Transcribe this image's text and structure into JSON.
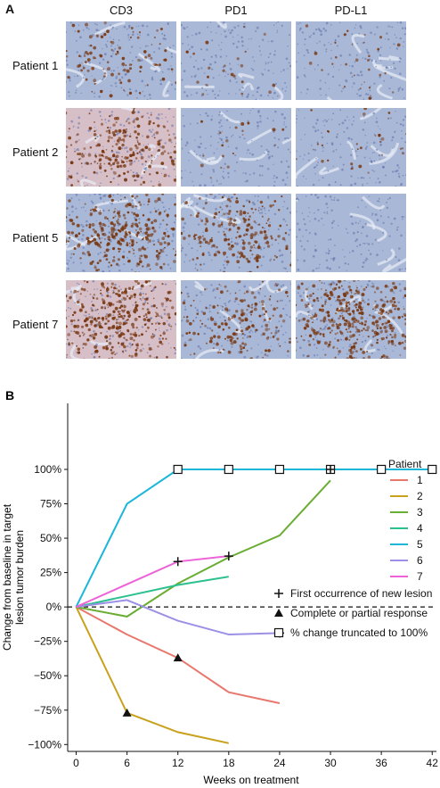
{
  "panel_a": {
    "label": "A",
    "columns": [
      "CD3",
      "PD1",
      "PD-L1"
    ],
    "rows": [
      "Patient 1",
      "Patient 2",
      "Patient 5",
      "Patient 7"
    ],
    "stain_density": [
      [
        0.25,
        0.05,
        0.08
      ],
      [
        0.55,
        0.05,
        0.08
      ],
      [
        0.8,
        0.5,
        0.0
      ],
      [
        0.85,
        0.45,
        0.9
      ]
    ],
    "colors": {
      "stain": "#7a3a14",
      "background_blue": "#a9b8d6",
      "background_pink": "#d7bfc8"
    }
  },
  "panel_b": {
    "label": "B",
    "chart_data": {
      "type": "line",
      "xlabel": "Weeks on treatment",
      "ylabel": "Change from baseline in target lesion tumor burden",
      "ylabel_lines": [
        "Change from baseline in target",
        "lesion tumor burden"
      ],
      "xticks": [
        0,
        6,
        12,
        18,
        24,
        30,
        36,
        42
      ],
      "yticks": [
        -100,
        -75,
        -50,
        -25,
        0,
        25,
        50,
        75,
        100
      ],
      "ytick_labels": [
        "−100%",
        "−75%",
        "−50%",
        "−25%",
        "0%",
        "25%",
        "50%",
        "75%",
        "100%"
      ],
      "xlim": [
        -1,
        42.5
      ],
      "ylim": [
        -105,
        148
      ],
      "legend_title": "Patient",
      "series": [
        {
          "name": "1",
          "color": "#e8776e",
          "points": [
            [
              0,
              0
            ],
            [
              6,
              -20
            ],
            [
              12,
              -37
            ],
            [
              18,
              -62
            ],
            [
              24,
              -70
            ]
          ]
        },
        {
          "name": "2",
          "color": "#c8a21c",
          "points": [
            [
              0,
              0
            ],
            [
              6,
              -77
            ],
            [
              12,
              -91
            ],
            [
              18,
              -99
            ]
          ]
        },
        {
          "name": "3",
          "color": "#6aad33",
          "points": [
            [
              0,
              0
            ],
            [
              6,
              -7
            ],
            [
              12,
              17
            ],
            [
              18,
              36
            ],
            [
              24,
              52
            ],
            [
              30,
              92
            ]
          ]
        },
        {
          "name": "4",
          "color": "#2cbf8f",
          "points": [
            [
              0,
              0
            ],
            [
              6,
              8
            ],
            [
              12,
              16
            ],
            [
              18,
              22
            ]
          ]
        },
        {
          "name": "5",
          "color": "#1ab7d9",
          "points": [
            [
              0,
              0
            ],
            [
              6,
              75
            ],
            [
              12,
              100
            ],
            [
              18,
              100
            ],
            [
              24,
              100
            ],
            [
              30,
              100
            ],
            [
              36,
              100
            ],
            [
              42,
              100
            ]
          ]
        },
        {
          "name": "6",
          "color": "#9b90e6",
          "points": [
            [
              0,
              0
            ],
            [
              6,
              5
            ],
            [
              12,
              -10
            ],
            [
              18,
              -20
            ],
            [
              24,
              -19
            ]
          ]
        },
        {
          "name": "7",
          "color": "#ee62d8",
          "points": [
            [
              0,
              0
            ],
            [
              12,
              33
            ],
            [
              18,
              37
            ]
          ]
        }
      ],
      "markers": {
        "new_lesion": [
          [
            12,
            33
          ],
          [
            18,
            37
          ],
          [
            24,
            -19
          ],
          [
            30,
            100
          ]
        ],
        "response": [
          [
            6,
            -77
          ],
          [
            12,
            -37
          ]
        ],
        "truncated": [
          [
            12,
            100
          ],
          [
            18,
            100
          ],
          [
            24,
            100
          ],
          [
            30,
            100
          ],
          [
            36,
            100
          ],
          [
            42,
            100
          ]
        ]
      },
      "key": [
        {
          "symbol": "plus",
          "label": "First occurrence of new lesion"
        },
        {
          "symbol": "triangle",
          "label": "Complete or partial response"
        },
        {
          "symbol": "square",
          "label": "% change truncated to 100%"
        }
      ]
    }
  }
}
